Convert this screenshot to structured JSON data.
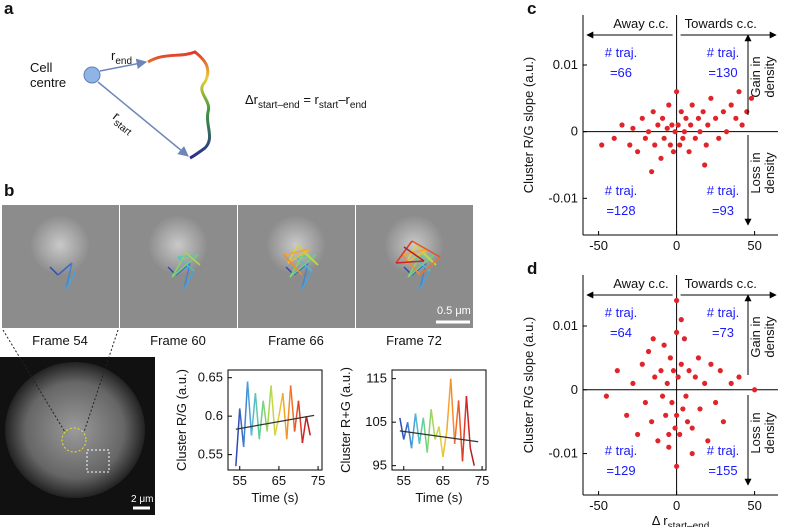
{
  "panel_labels": [
    "a",
    "b",
    "c",
    "d"
  ],
  "diagram": {
    "node": [
      "Cell",
      "centre"
    ],
    "r_end": {
      "main": "r",
      "sub": "end"
    },
    "r_start": {
      "main": "r",
      "sub": "start"
    },
    "formula": [
      "Δr",
      "start–end",
      " = r",
      "start",
      "–r",
      "end"
    ]
  },
  "frames": [
    "Frame 54",
    "Frame 60",
    "Frame 66",
    "Frame 72"
  ],
  "scale_bars": [
    "0.5 μm",
    "2 μm"
  ],
  "segment_colors": [
    "#2b2c8f",
    "#2f4bb0",
    "#3a66c8",
    "#3f86d4",
    "#4aa3d8",
    "#52bcc9",
    "#5bc9a8",
    "#6ccf86",
    "#8ad36a",
    "#a8d654",
    "#c6d645",
    "#e0d03a",
    "#f0bd33",
    "#f5a42e",
    "#f58a2b",
    "#f06f28",
    "#e85426",
    "#dc3a25",
    "#cc2424",
    "#b81d1d"
  ],
  "chart_data": [
    {
      "type": "line",
      "ylabel": "Cluster R/G (a.u.)",
      "xlabel": "Time (s)",
      "x": [
        54,
        55,
        56,
        57,
        58,
        59,
        60,
        61,
        62,
        63,
        64,
        65,
        66,
        67,
        68,
        69,
        70,
        71,
        72,
        73
      ],
      "values": [
        0.535,
        0.61,
        0.56,
        0.645,
        0.575,
        0.63,
        0.57,
        0.62,
        0.58,
        0.64,
        0.575,
        0.6,
        0.63,
        0.57,
        0.64,
        0.58,
        0.62,
        0.565,
        0.6,
        0.575
      ],
      "trend": {
        "x": [
          54,
          74
        ],
        "values": [
          0.583,
          0.601
        ],
        "color": "#333333"
      },
      "xlim": [
        52,
        76
      ],
      "xticks": [
        55,
        65,
        75
      ],
      "ylim": [
        0.53,
        0.66
      ],
      "yticks": [
        0.55,
        0.6,
        0.65
      ]
    },
    {
      "type": "line",
      "ylabel": "Cluster R+G (a.u.)",
      "xlabel": "Time (s)",
      "x": [
        54,
        55,
        56,
        57,
        58,
        59,
        60,
        61,
        62,
        63,
        64,
        65,
        66,
        67,
        68,
        69,
        70,
        71,
        72,
        73
      ],
      "values": [
        106,
        101,
        105,
        99,
        107,
        100,
        106,
        98,
        108,
        101,
        104,
        97,
        103,
        115,
        100,
        110,
        96,
        111,
        99,
        95
      ],
      "trend": {
        "x": [
          54,
          74
        ],
        "values": [
          103,
          100.5
        ],
        "color": "#333333"
      },
      "xlim": [
        52,
        76
      ],
      "xticks": [
        55,
        65,
        75
      ],
      "ylim": [
        94,
        117
      ],
      "yticks": [
        95,
        105,
        115
      ]
    },
    {
      "type": "scatter",
      "ylabel": "Cluster R/G slope (a.u.)",
      "color": "#e0242a",
      "x": [
        -48,
        -40,
        -35,
        -30,
        -28,
        -25,
        -22,
        -20,
        -18,
        -15,
        -14,
        -12,
        -10,
        -9,
        -8,
        -6,
        -5,
        -4,
        -3,
        -2,
        -1,
        0,
        1,
        2,
        3,
        4,
        5,
        6,
        8,
        9,
        10,
        12,
        14,
        15,
        17,
        19,
        20,
        22,
        25,
        27,
        30,
        32,
        35,
        38,
        40,
        42,
        45,
        48,
        -16,
        18
      ],
      "values": [
        -0.002,
        -0.001,
        0.001,
        -0.002,
        0.0005,
        -0.003,
        0.002,
        -0.001,
        0,
        0.003,
        -0.002,
        0.001,
        -0.004,
        0.002,
        -0.001,
        0.0005,
        0.004,
        -0.002,
        0.001,
        -0.003,
        0,
        0.006,
        0.001,
        -0.002,
        0.003,
        -0.001,
        0,
        0.002,
        -0.003,
        0.001,
        0.004,
        -0.001,
        0.002,
        0,
        0.003,
        -0.002,
        0.001,
        0.005,
        0.002,
        -0.001,
        0.003,
        0,
        0.004,
        0.002,
        0.006,
        0.001,
        0.003,
        0.005,
        -0.006,
        -0.005
      ],
      "xlim": [
        -60,
        65
      ],
      "xticks": [
        -50,
        0,
        50
      ],
      "ylim": [
        -0.0155,
        0.0175
      ],
      "yticks": [
        -0.01,
        0,
        0.01
      ],
      "directions": [
        "Away c.c.",
        "Towards c.c."
      ],
      "density": [
        [
          "Gain in",
          "density"
        ],
        [
          "Loss in",
          "density"
        ]
      ],
      "quadrants": [
        {
          "label": "# traj.",
          "count": "=66"
        },
        {
          "label": "# traj.",
          "count": "=130"
        },
        {
          "label": "# traj.",
          "count": "=128"
        },
        {
          "label": "# traj.",
          "count": "=93"
        }
      ]
    },
    {
      "type": "scatter",
      "ylabel": "Cluster R/G slope (a.u.)",
      "xlabel": {
        "main": "Δ r",
        "sub": "start–end"
      },
      "color": "#e0242a",
      "x": [
        -45,
        -38,
        -32,
        -28,
        -25,
        -22,
        -20,
        -18,
        -16,
        -14,
        -12,
        -10,
        -9,
        -8,
        -7,
        -6,
        -5,
        -4,
        -3,
        -2,
        -1,
        0,
        0,
        0,
        0,
        1,
        2,
        3,
        4,
        5,
        6,
        7,
        8,
        10,
        12,
        14,
        15,
        18,
        20,
        22,
        25,
        28,
        30,
        35,
        40,
        50,
        -15,
        10,
        3,
        -5
      ],
      "values": [
        -0.001,
        0.003,
        -0.004,
        0.001,
        -0.007,
        0.004,
        -0.002,
        0.006,
        -0.005,
        0.002,
        -0.008,
        0.003,
        -0.001,
        0.007,
        -0.004,
        0.001,
        -0.009,
        0.005,
        -0.002,
        0.003,
        -0.006,
        0.014,
        -0.012,
        0.009,
        -0.004,
        0.002,
        -0.007,
        0.004,
        -0.003,
        0.008,
        -0.001,
        -0.005,
        0.003,
        -0.006,
        0.002,
        0.005,
        -0.003,
        0.001,
        -0.008,
        0.004,
        -0.002,
        0.003,
        -0.005,
        0.001,
        0.002,
        0,
        0.008,
        -0.01,
        0.011,
        -0.007
      ],
      "xlim": [
        -60,
        65
      ],
      "xticks": [
        -50,
        0,
        50
      ],
      "ylim": [
        -0.0165,
        0.018
      ],
      "yticks": [
        -0.01,
        0,
        0.01
      ],
      "directions": [
        "Away c.c.",
        "Towards c.c."
      ],
      "density": [
        [
          "Gain in",
          "density"
        ],
        [
          "Loss in",
          "density"
        ]
      ],
      "quadrants": [
        {
          "label": "# traj.",
          "count": "=64"
        },
        {
          "label": "# traj.",
          "count": "=73"
        },
        {
          "label": "# traj.",
          "count": "=129"
        },
        {
          "label": "# traj.",
          "count": "=155"
        }
      ]
    }
  ]
}
